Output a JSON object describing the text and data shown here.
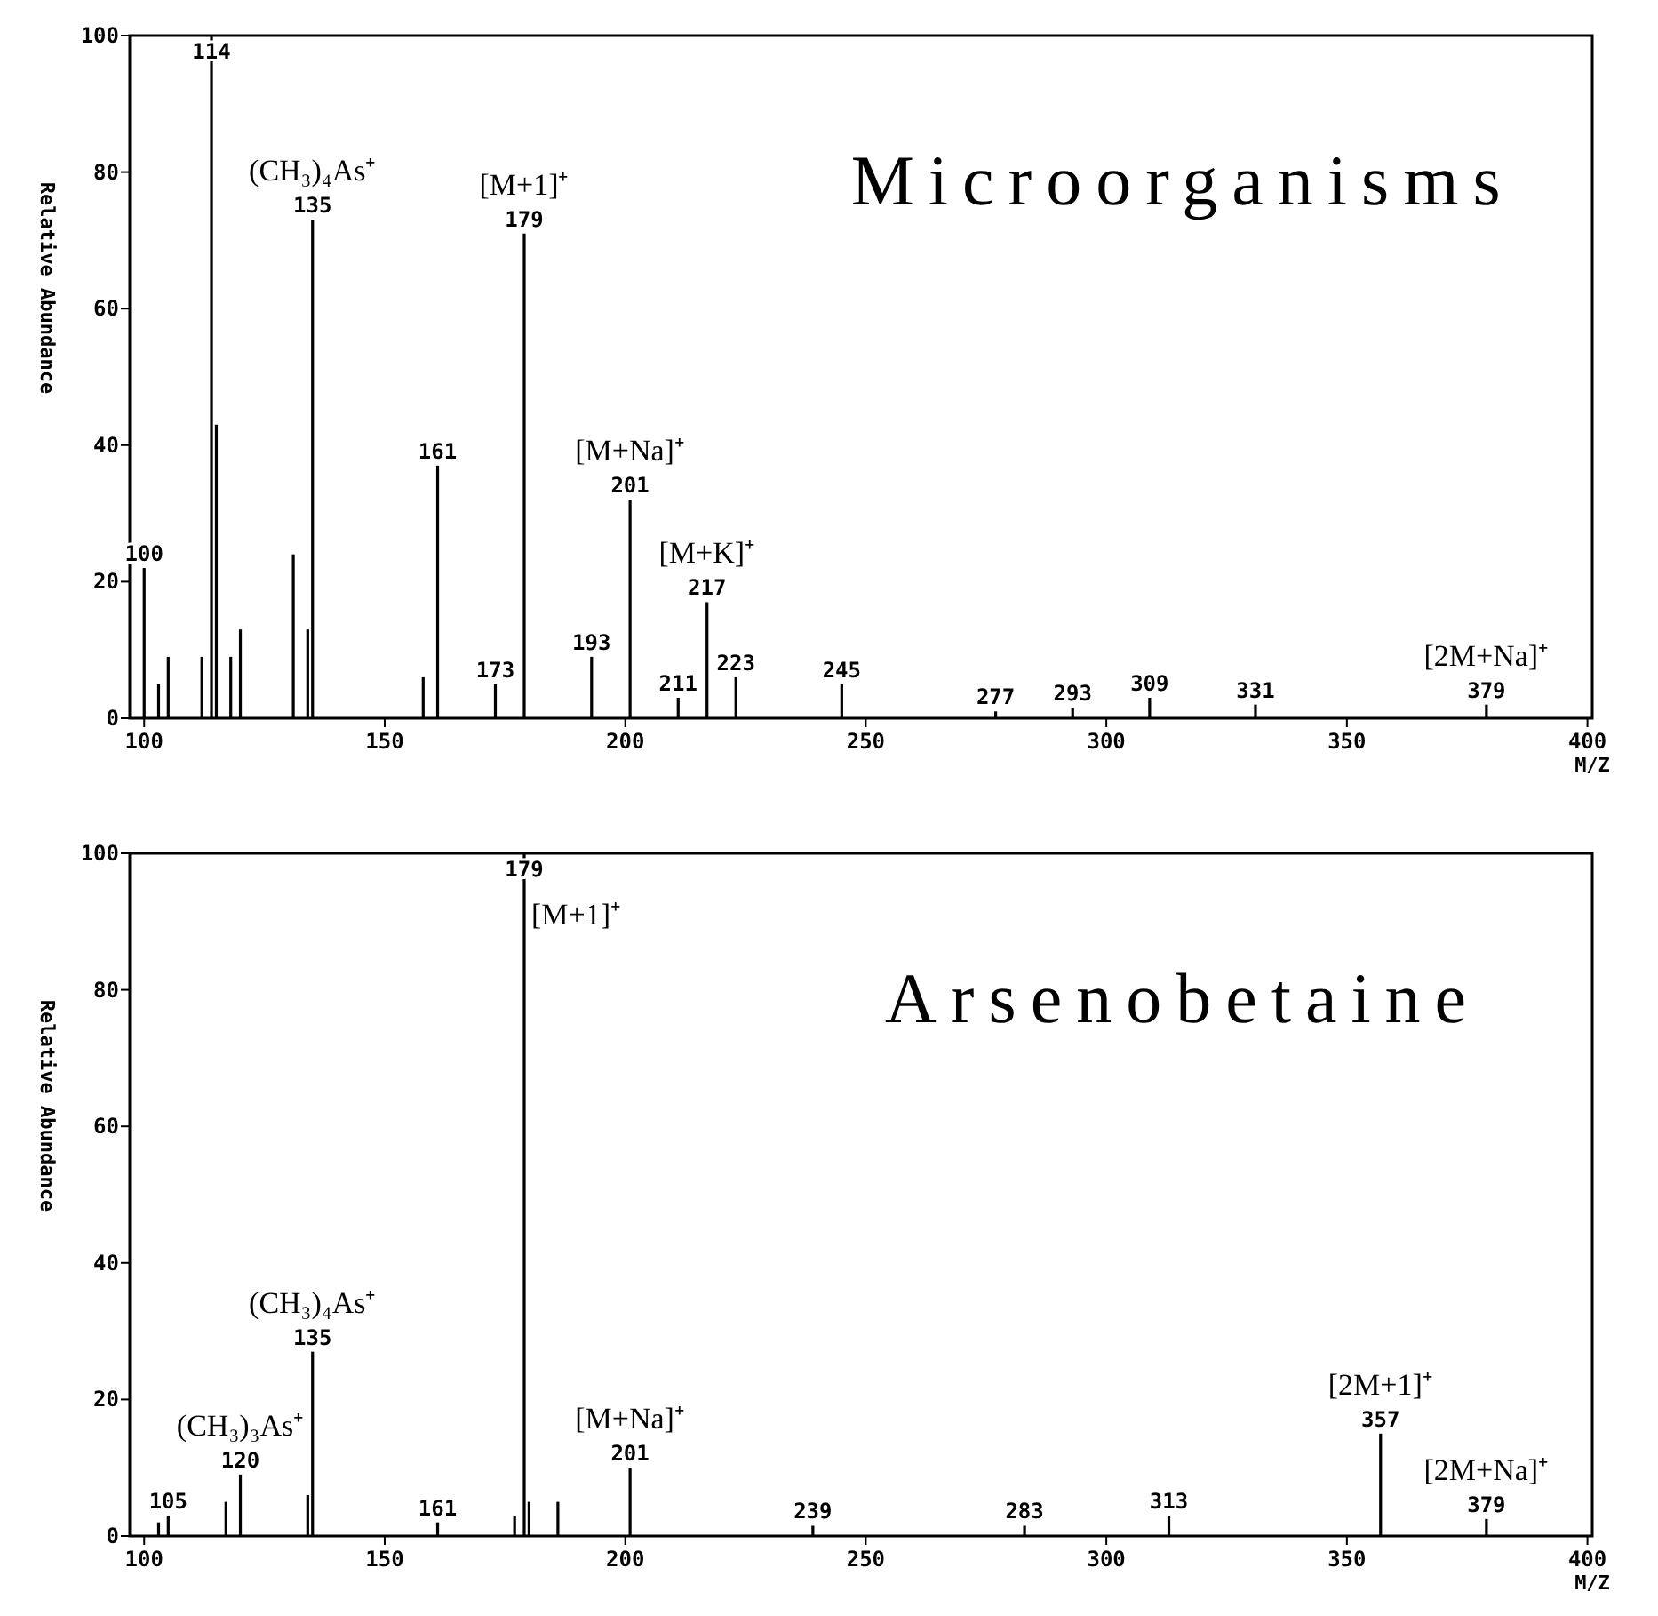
{
  "chart_data": [
    {
      "type": "bar",
      "title": "Microorganisms",
      "ylabel": "Relative Abundance",
      "xlabel": "M/Z",
      "color": "#000000",
      "xlim": [
        97,
        401
      ],
      "xticks": [
        100,
        150,
        200,
        250,
        300,
        350,
        400
      ],
      "ylim": [
        0,
        100
      ],
      "yticks": [
        0,
        20,
        40,
        60,
        80,
        100
      ],
      "x": [
        100,
        103,
        105,
        112,
        114,
        115,
        118,
        120,
        131,
        134,
        135,
        158,
        161,
        173,
        179,
        193,
        201,
        211,
        217,
        223,
        245,
        277,
        293,
        309,
        331,
        379
      ],
      "values": [
        22,
        5,
        9,
        9,
        100,
        43,
        9,
        13,
        24,
        13,
        73,
        6,
        37,
        5,
        71,
        9,
        32,
        3,
        17,
        6,
        5,
        1,
        1.5,
        3,
        2,
        2
      ],
      "annotations": [
        {
          "text": "100",
          "x": 100,
          "y": 22
        },
        {
          "text": "114",
          "x": 114,
          "y": 100
        },
        {
          "text": "135",
          "x": 135,
          "y": 73
        },
        {
          "text": "(CH₃)₄As⁺",
          "x": 135,
          "y": 73
        },
        {
          "text": "161",
          "x": 161,
          "y": 37
        },
        {
          "text": "173",
          "x": 173,
          "y": 5
        },
        {
          "text": "179",
          "x": 179,
          "y": 71
        },
        {
          "text": "[M+1]⁺",
          "x": 179,
          "y": 71
        },
        {
          "text": "193",
          "x": 193,
          "y": 9
        },
        {
          "text": "201",
          "x": 201,
          "y": 32
        },
        {
          "text": "[M+Na]⁺",
          "x": 201,
          "y": 32
        },
        {
          "text": "211",
          "x": 211,
          "y": 3
        },
        {
          "text": "217",
          "x": 217,
          "y": 17
        },
        {
          "text": "[M+K]⁺",
          "x": 217,
          "y": 17
        },
        {
          "text": "223",
          "x": 223,
          "y": 6
        },
        {
          "text": "245",
          "x": 245,
          "y": 5
        },
        {
          "text": "277",
          "x": 277,
          "y": 1
        },
        {
          "text": "293",
          "x": 293,
          "y": 1.5
        },
        {
          "text": "309",
          "x": 309,
          "y": 3
        },
        {
          "text": "331",
          "x": 331,
          "y": 2
        },
        {
          "text": "379",
          "x": 379,
          "y": 2
        },
        {
          "text": "[2M+Na]⁺",
          "x": 379,
          "y": 2
        }
      ]
    },
    {
      "type": "bar",
      "title": "Arsenobetaine",
      "ylabel": "Relative Abundance",
      "xlabel": "M/Z",
      "color": "#000000",
      "xlim": [
        97,
        401
      ],
      "xticks": [
        100,
        150,
        200,
        250,
        300,
        350,
        400
      ],
      "ylim": [
        0,
        100
      ],
      "yticks": [
        0,
        20,
        40,
        60,
        80,
        100
      ],
      "x": [
        103,
        105,
        117,
        120,
        134,
        135,
        161,
        177,
        179,
        180,
        186,
        201,
        239,
        283,
        313,
        357,
        379
      ],
      "values": [
        2,
        3,
        5,
        9,
        6,
        27,
        2,
        3,
        100,
        5,
        5,
        10,
        1.5,
        1.5,
        3,
        15,
        2.5
      ],
      "annotations": [
        {
          "text": "105",
          "x": 105,
          "y": 3
        },
        {
          "text": "120",
          "x": 120,
          "y": 9
        },
        {
          "text": "(CH₃)₃As⁺",
          "x": 120,
          "y": 9
        },
        {
          "text": "135",
          "x": 135,
          "y": 27
        },
        {
          "text": "(CH₃)₄As⁺",
          "x": 135,
          "y": 27
        },
        {
          "text": "161",
          "x": 161,
          "y": 2
        },
        {
          "text": "179",
          "x": 179,
          "y": 100
        },
        {
          "text": "[M+1]⁺",
          "x": 179,
          "y": 100
        },
        {
          "text": "201",
          "x": 201,
          "y": 10
        },
        {
          "text": "[M+Na]⁺",
          "x": 201,
          "y": 10
        },
        {
          "text": "239",
          "x": 239,
          "y": 1.5
        },
        {
          "text": "283",
          "x": 283,
          "y": 1.5
        },
        {
          "text": "313",
          "x": 313,
          "y": 3
        },
        {
          "text": "357",
          "x": 357,
          "y": 15
        },
        {
          "text": "[2M+1]⁺",
          "x": 357,
          "y": 15
        },
        {
          "text": "379",
          "x": 379,
          "y": 2.5
        },
        {
          "text": "[2M+Na]⁺",
          "x": 379,
          "y": 2.5
        }
      ]
    }
  ]
}
